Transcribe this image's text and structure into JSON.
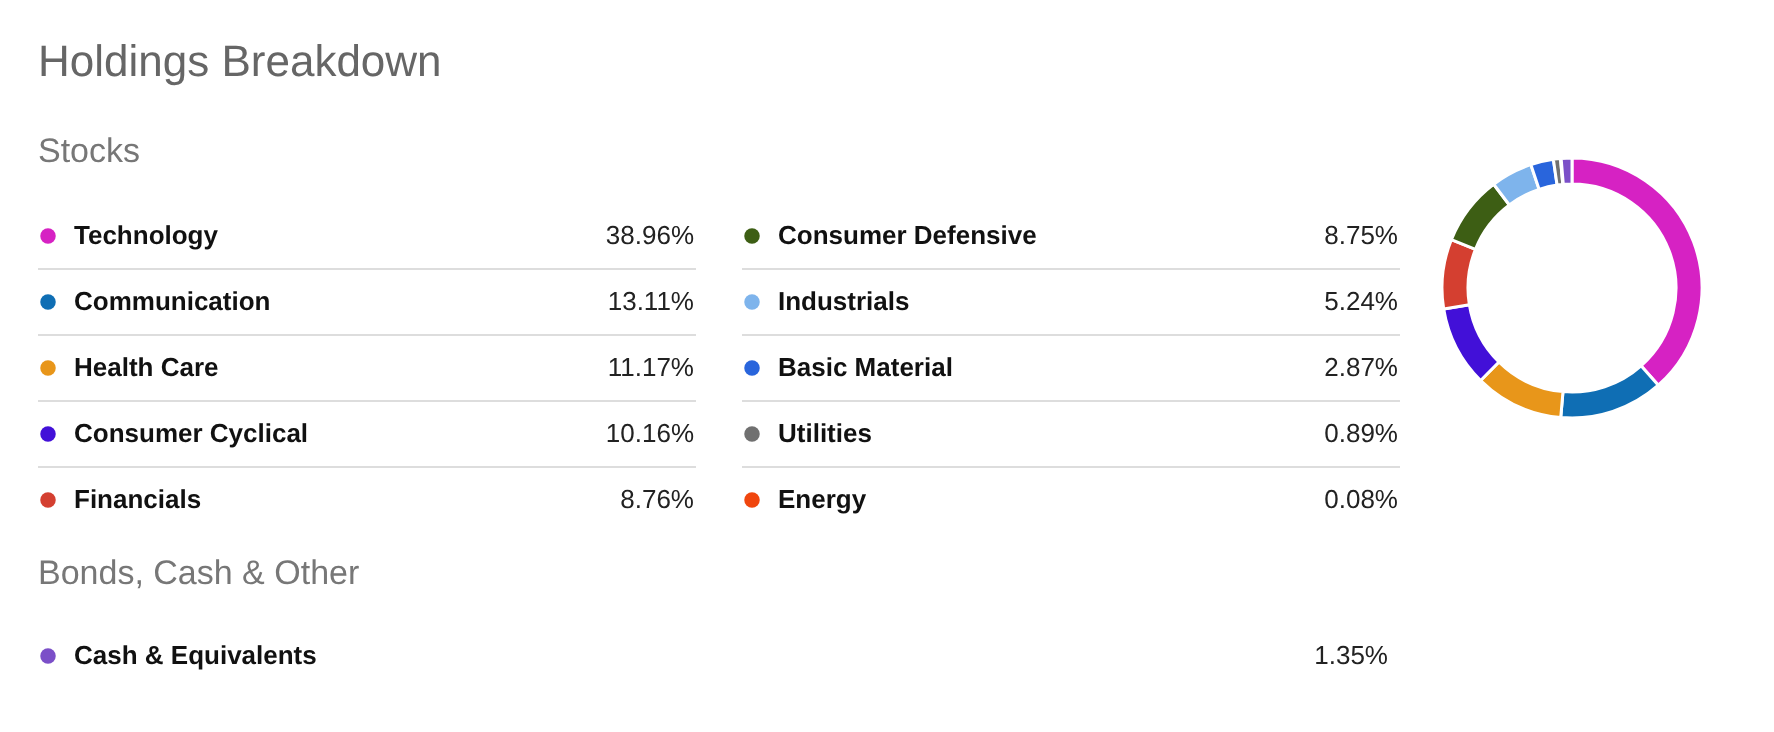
{
  "chart_data": {
    "type": "donut",
    "title": "Holdings Breakdown",
    "subtitle": "Stocks",
    "annotations": [
      "Bonds, Cash & Other"
    ],
    "categories": [
      "Technology",
      "Communication",
      "Health Care",
      "Consumer Cyclical",
      "Financials",
      "Consumer Defensive",
      "Industrials",
      "Basic Material",
      "Utilities",
      "Energy",
      "Cash & Equivalents"
    ],
    "values": [
      38.96,
      13.11,
      11.17,
      10.16,
      8.76,
      8.75,
      5.24,
      2.87,
      0.89,
      0.08,
      1.35
    ],
    "value_labels": [
      "38.96%",
      "13.11%",
      "11.17%",
      "10.16%",
      "8.76%",
      "8.75%",
      "5.24%",
      "2.87%",
      "0.89%",
      "0.08%",
      "1.35%"
    ],
    "colors": [
      "#d622c3",
      "#0f6eb4",
      "#e8961a",
      "#4210d8",
      "#d43f30",
      "#3d5e14",
      "#7eb4ec",
      "#2965dc",
      "#707070",
      "#f0460e",
      "#7b4fc8"
    ],
    "legend": "left"
  }
}
